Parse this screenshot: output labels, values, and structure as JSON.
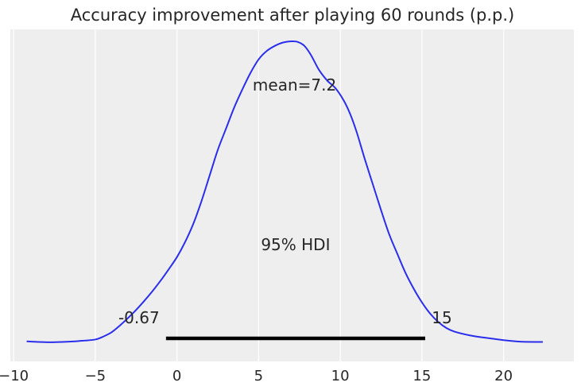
{
  "chart_data": {
    "type": "area",
    "title": "Accuracy improvement after playing 60 rounds (p.p.)",
    "xlabel": "",
    "ylabel": "",
    "xlim": [
      -10.2,
      24.3
    ],
    "ylim": [
      0,
      1
    ],
    "x_ticks": [
      -10,
      -5,
      0,
      5,
      10,
      15,
      20
    ],
    "x_tick_labels": [
      "−10",
      "−5",
      "0",
      "5",
      "10",
      "15",
      "20"
    ],
    "grid": true,
    "series": [
      {
        "x": [
          -9.2,
          -8.5,
          -7.8,
          -7.0,
          -6.0,
          -5.0,
          -4.5,
          -4.0,
          -3.5,
          -3.0,
          -2.5,
          -2.0,
          -1.5,
          -1.0,
          -0.5,
          0.0,
          0.5,
          1.0,
          1.5,
          2.0,
          2.5,
          3.0,
          3.5,
          4.0,
          4.5,
          5.0,
          5.5,
          6.0,
          6.5,
          7.0,
          7.4,
          7.8,
          8.2,
          8.7,
          9.2,
          9.7,
          10.2,
          10.6,
          11.0,
          11.5,
          12.0,
          12.5,
          13.0,
          13.5,
          14.0,
          14.5,
          15.0,
          15.5,
          16.0,
          16.5,
          17.0,
          18.0,
          19.0,
          20.0,
          21.0,
          22.0,
          22.4
        ],
        "y": [
          0.006,
          0.004,
          0.003,
          0.004,
          0.007,
          0.012,
          0.022,
          0.036,
          0.058,
          0.083,
          0.11,
          0.14,
          0.172,
          0.207,
          0.245,
          0.285,
          0.335,
          0.395,
          0.47,
          0.555,
          0.64,
          0.71,
          0.78,
          0.84,
          0.895,
          0.94,
          0.968,
          0.985,
          0.996,
          1.0,
          0.998,
          0.985,
          0.955,
          0.905,
          0.87,
          0.845,
          0.805,
          0.76,
          0.7,
          0.61,
          0.525,
          0.44,
          0.36,
          0.295,
          0.232,
          0.18,
          0.135,
          0.098,
          0.07,
          0.05,
          0.038,
          0.025,
          0.017,
          0.01,
          0.005,
          0.004,
          0.004
        ],
        "color": "#2a2eec"
      }
    ],
    "annotations": {
      "mean_label": "mean=7.2",
      "hdi_label": "95% HDI",
      "hdi_low_label": "-0.67",
      "hdi_high_label": "15"
    },
    "hdi": {
      "low": -0.67,
      "high": 15.2
    },
    "mean": 7.2,
    "colors": {
      "background": "#eeeeee",
      "grid": "#ffffff",
      "curve": "#2a2eec",
      "hdi_bar": "#000000",
      "text": "#262626"
    }
  }
}
